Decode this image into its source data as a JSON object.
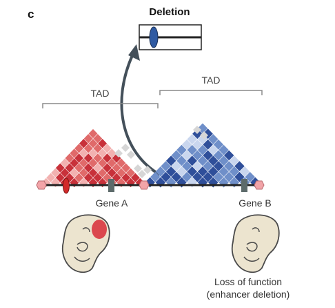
{
  "panel_label": "c",
  "title": "Deletion",
  "tad_left_label": "TAD",
  "tad_right_label": "TAD",
  "gene_a_label": "Gene A",
  "gene_b_label": "Gene B",
  "caption_line1": "Loss of function",
  "caption_line2": "(enhancer deletion)",
  "colors": {
    "red_dark": "#c8313a",
    "red_mid": "#e06a6a",
    "red_light": "#f2b1b0",
    "blue_dark": "#2f4f9a",
    "blue_mid": "#6f8fc9",
    "blue_light": "#c9d6ee",
    "grey_cell": "#d6d6d6",
    "boundary_pink": "#f2a4a8",
    "enhancer_red": "#d22a2a",
    "enhancer_blue": "#2f5aa2",
    "gene_box": "#5d6b6b",
    "arrow": "#44505a",
    "embryo_fill": "#ece4cf",
    "embryo_stroke": "#4a4a4a",
    "expression_red": "#d9353f"
  }
}
